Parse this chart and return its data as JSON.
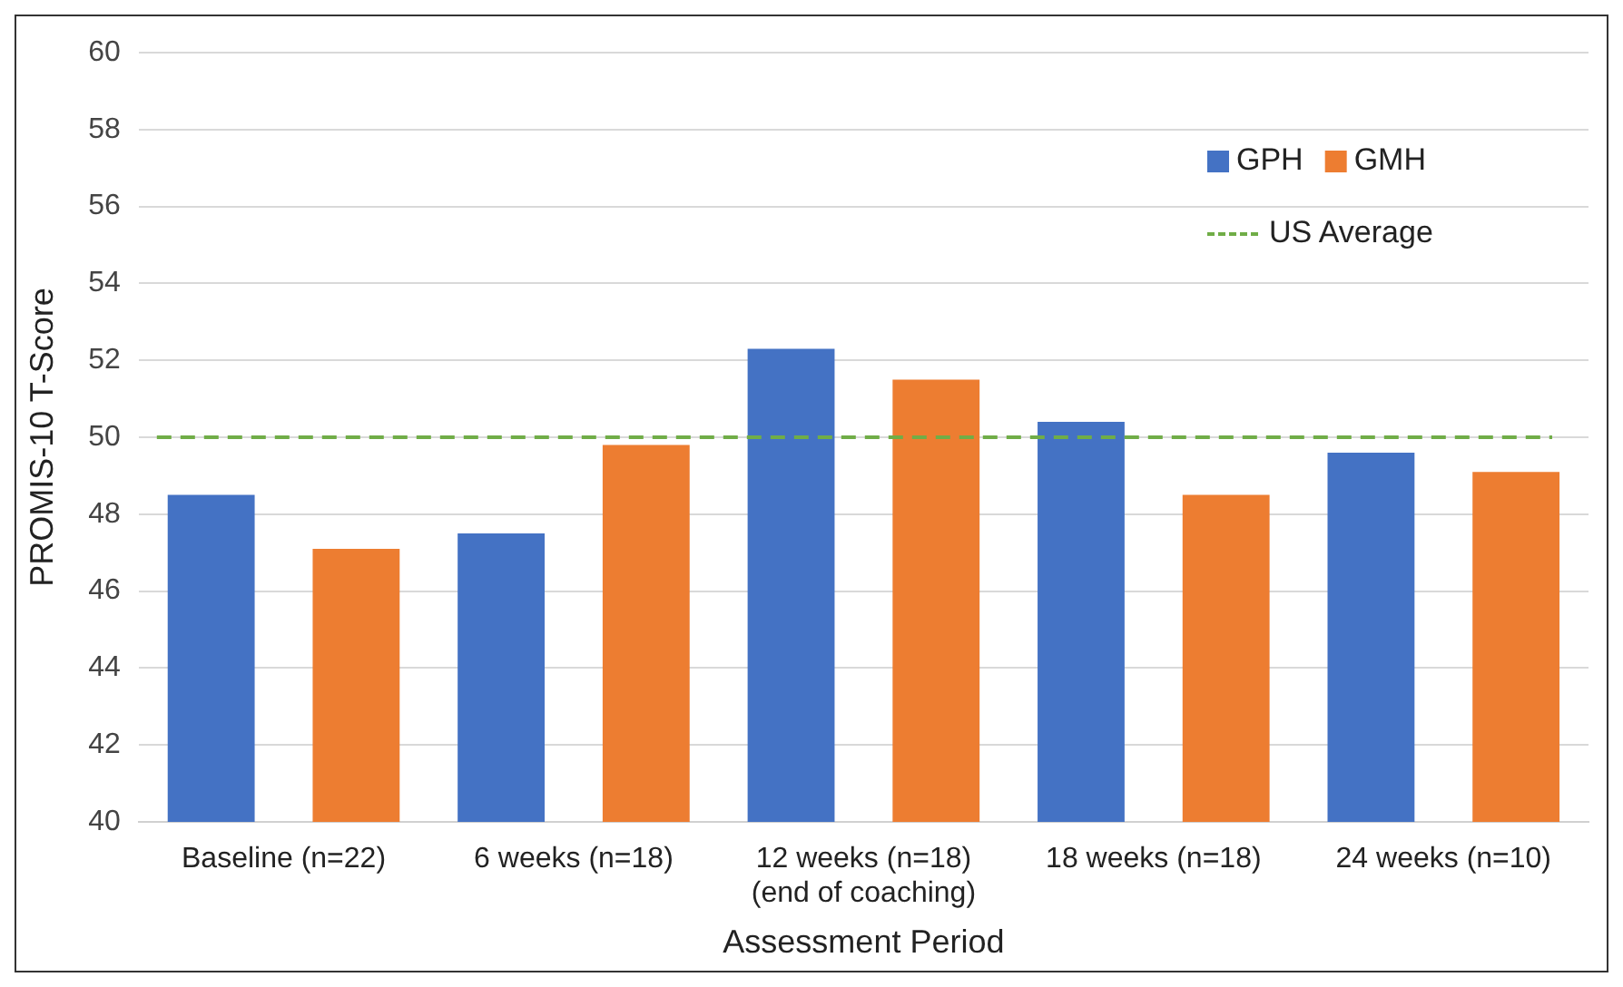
{
  "chart_data": {
    "type": "bar",
    "xlabel": "Assessment Period",
    "ylabel": "PROMIS-10 T-Score",
    "categories": [
      "Baseline (n=22)",
      "6 weeks (n=18)",
      "12 weeks (n=18)\n(end of coaching)",
      "18 weeks (n=18)",
      "24 weeks (n=10)"
    ],
    "series": [
      {
        "name": "GPH",
        "color": "#4472c4",
        "values": [
          48.5,
          47.5,
          52.3,
          50.4,
          49.6
        ]
      },
      {
        "name": "GMH",
        "color": "#ed7d31",
        "values": [
          47.1,
          49.8,
          51.5,
          48.5,
          49.1
        ]
      }
    ],
    "ref_lines": [
      {
        "axis": "y",
        "value": 50,
        "label": "US Average",
        "color": "#70ad47",
        "line_style": "dashed"
      }
    ],
    "ylim": [
      40,
      60
    ],
    "yticks": [
      40,
      42,
      44,
      46,
      48,
      50,
      52,
      54,
      56,
      58,
      60
    ],
    "grid": "y",
    "legend": "top right"
  }
}
